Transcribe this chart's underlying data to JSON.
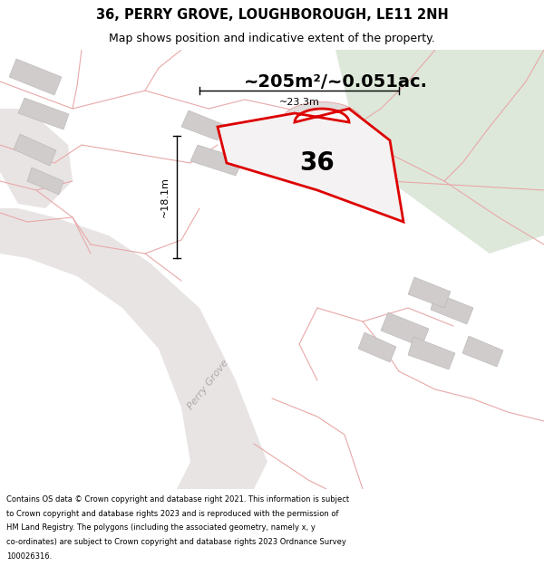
{
  "title_line1": "36, PERRY GROVE, LOUGHBOROUGH, LE11 2NH",
  "title_line2": "Map shows position and indicative extent of the property.",
  "footer_text": "Contains OS data © Crown copyright and database right 2021. This information is subject to Crown copyright and database rights 2023 and is reproduced with the permission of HM Land Registry. The polygons (including the associated geometry, namely x, y co-ordinates) are subject to Crown copyright and database rights 2023 Ordnance Survey 100026316.",
  "area_label": "~205m²/~0.051ac.",
  "number_label": "36",
  "width_label": "~23.3m",
  "height_label": "~18.1m",
  "road_label": "Perry Grove",
  "map_bg": "#eeecec",
  "green_color": "#dde8da",
  "plot_fill": "#f0eeee",
  "plot_stroke": "#dd0000",
  "building_color": "#d0cccc",
  "boundary_color": "#e8a8a8",
  "fig_width": 6.0,
  "fig_height": 6.25,
  "title_fontsize": 10.5,
  "subtitle_fontsize": 9,
  "footer_fontsize": 6.0,
  "area_fontsize": 14,
  "number_fontsize": 20,
  "dim_fontsize": 8,
  "road_fontsize": 8
}
